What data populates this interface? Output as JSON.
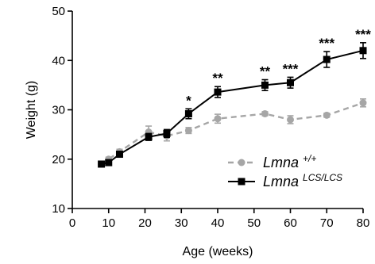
{
  "chart_data": {
    "type": "line",
    "xlabel": "Age (weeks)",
    "ylabel": "Weight (g)",
    "xlim": [
      0,
      80
    ],
    "ylim": [
      10,
      50
    ],
    "xticks": [
      0,
      10,
      20,
      30,
      40,
      50,
      60,
      70,
      80
    ],
    "yticks": [
      10,
      20,
      30,
      40,
      50
    ],
    "grid": false,
    "legend_position": "bottom-right",
    "series": [
      {
        "name": "Lmna",
        "name_superscript": "+/+",
        "color": "#a6a6a6",
        "line_style": "dashed",
        "marker": "circle",
        "points": [
          {
            "x": 8,
            "y": 19.0,
            "err": 0.4
          },
          {
            "x": 10,
            "y": 20.0,
            "err": 0.4
          },
          {
            "x": 13,
            "y": 21.5,
            "err": 0.5
          },
          {
            "x": 21,
            "y": 25.5,
            "err": 1.2
          },
          {
            "x": 26,
            "y": 24.7,
            "err": 1.0
          },
          {
            "x": 32,
            "y": 25.8,
            "err": 0.6
          },
          {
            "x": 40,
            "y": 28.2,
            "err": 0.9
          },
          {
            "x": 53,
            "y": 29.2,
            "err": 0.4
          },
          {
            "x": 60,
            "y": 28.0,
            "err": 0.8
          },
          {
            "x": 70,
            "y": 28.9,
            "err": 0.4
          },
          {
            "x": 80,
            "y": 31.4,
            "err": 0.8
          }
        ]
      },
      {
        "name": "Lmna",
        "name_superscript": "LCS/LCS",
        "color": "#000000",
        "line_style": "solid",
        "marker": "square",
        "points": [
          {
            "x": 8,
            "y": 19.0,
            "err": 0.4
          },
          {
            "x": 10,
            "y": 19.3,
            "err": 0.4
          },
          {
            "x": 13,
            "y": 21.0,
            "err": 0.5
          },
          {
            "x": 21,
            "y": 24.5,
            "err": 0.7
          },
          {
            "x": 26,
            "y": 25.2,
            "err": 0.8
          },
          {
            "x": 32,
            "y": 29.2,
            "err": 1.0
          },
          {
            "x": 40,
            "y": 33.6,
            "err": 1.1
          },
          {
            "x": 53,
            "y": 35.0,
            "err": 1.1
          },
          {
            "x": 60,
            "y": 35.5,
            "err": 1.1
          },
          {
            "x": 70,
            "y": 40.2,
            "err": 1.6
          },
          {
            "x": 80,
            "y": 42.0,
            "err": 1.6
          }
        ]
      }
    ],
    "annotations": [
      {
        "x": 32,
        "text": "*"
      },
      {
        "x": 40,
        "text": "**"
      },
      {
        "x": 53,
        "text": "**"
      },
      {
        "x": 60,
        "text": "***"
      },
      {
        "x": 70,
        "text": "***"
      },
      {
        "x": 80,
        "text": "***"
      }
    ]
  }
}
